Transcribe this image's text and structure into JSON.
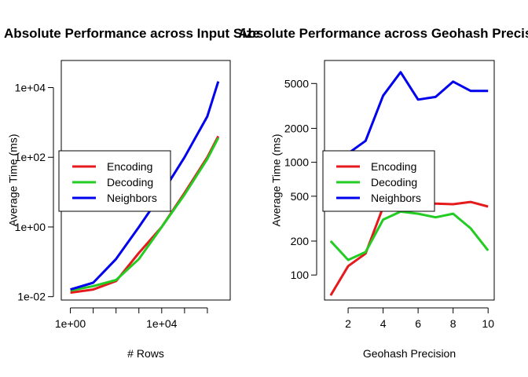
{
  "chart_data": [
    {
      "type": "line",
      "title": "Absolute Performance across Input Size",
      "xlabel": "# Rows",
      "ylabel": "Average Time (ms)",
      "xscale": "log",
      "yscale": "log",
      "xlim": [
        0.4,
        10000000.0
      ],
      "ylim": [
        0.008,
        60000
      ],
      "x_ticks": [
        1,
        10,
        100,
        1000,
        10000,
        100000,
        1000000
      ],
      "x_tick_labels": [
        "1e+00",
        "",
        "",
        "",
        "1e+04",
        "",
        ""
      ],
      "y_ticks": [
        0.01,
        1,
        100,
        10000
      ],
      "y_tick_labels": [
        "1e-02",
        "1e+00",
        "1e+02",
        "1e+04"
      ],
      "x": [
        1,
        10,
        100,
        1000,
        10000,
        100000,
        1000000,
        3000000
      ],
      "series": [
        {
          "name": "Encoding",
          "color": "#e41a1c",
          "values": [
            0.013,
            0.016,
            0.028,
            0.18,
            1.0,
            9.5,
            100,
            400
          ]
        },
        {
          "name": "Decoding",
          "color": "#22cc22",
          "values": [
            0.015,
            0.02,
            0.03,
            0.12,
            1.0,
            8.5,
            90,
            360
          ]
        },
        {
          "name": "Neighbors",
          "color": "#0000ee",
          "values": [
            0.016,
            0.025,
            0.12,
            1.0,
            9.0,
            100,
            1500,
            15000
          ]
        }
      ],
      "legend": "center-left",
      "grid": false
    },
    {
      "type": "line",
      "title": "Absolute Performance across Geohash Precision",
      "xlabel": "Geohash Precision",
      "ylabel": "Average Time (ms)",
      "yscale": "log",
      "xlim": [
        0.65,
        10.35
      ],
      "ylim": [
        60,
        8000
      ],
      "x_ticks": [
        2,
        4,
        6,
        8,
        10
      ],
      "x_tick_labels": [
        "2",
        "4",
        "6",
        "8",
        "10"
      ],
      "y_ticks": [
        100,
        200,
        500,
        1000,
        2000,
        5000
      ],
      "y_tick_labels": [
        "100",
        "200",
        "500",
        "1000",
        "2000",
        "5000"
      ],
      "x": [
        1,
        2,
        3,
        4,
        5,
        6,
        7,
        8,
        9,
        10
      ],
      "series": [
        {
          "name": "Encoding",
          "color": "#e41a1c",
          "values": [
            66,
            120,
            155,
            400,
            420,
            430,
            430,
            425,
            445,
            405
          ]
        },
        {
          "name": "Decoding",
          "color": "#22cc22",
          "values": [
            200,
            136,
            160,
            310,
            365,
            350,
            325,
            350,
            260,
            165
          ]
        },
        {
          "name": "Neighbors",
          "color": "#0000ee",
          "values": [
            1200,
            1200,
            1550,
            3900,
            6300,
            3600,
            3800,
            5200,
            4300,
            4300
          ]
        }
      ],
      "legend": "center-left",
      "grid": false
    }
  ]
}
